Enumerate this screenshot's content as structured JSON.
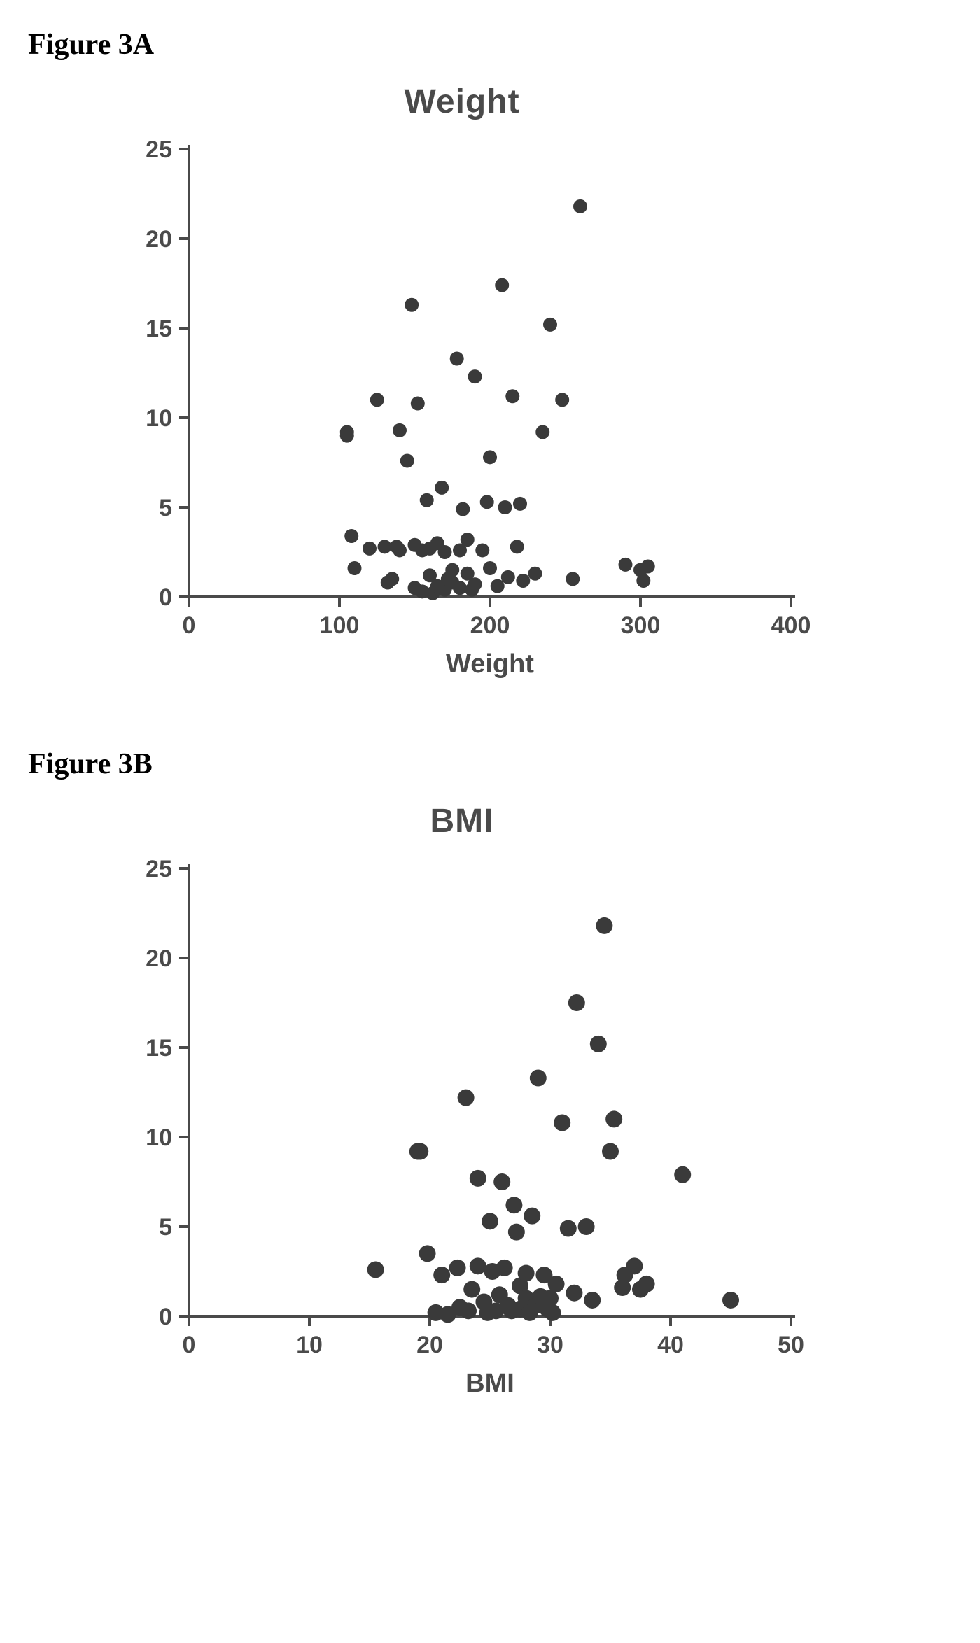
{
  "figures": [
    {
      "label": "Figure 3A",
      "chart": {
        "type": "scatter",
        "title": "Weight",
        "xlabel": "Weight",
        "ylabel": "",
        "xlim": [
          0,
          400
        ],
        "ylim": [
          0,
          25
        ],
        "xticks": [
          0,
          100,
          200,
          300,
          400
        ],
        "yticks": [
          0,
          5,
          10,
          15,
          20,
          25
        ],
        "marker_radius": 10,
        "marker_color": "#3a3a3a",
        "axis_color": "#4a4a4a",
        "axis_width": 4,
        "tick_length": 14,
        "tick_fontsize": 34,
        "label_fontsize": 38,
        "title_fontsize": 48,
        "background_color": "#ffffff",
        "points": [
          [
            105,
            9.2
          ],
          [
            105,
            9.0
          ],
          [
            108,
            3.4
          ],
          [
            110,
            1.6
          ],
          [
            120,
            2.7
          ],
          [
            125,
            11.0
          ],
          [
            130,
            2.8
          ],
          [
            132,
            0.8
          ],
          [
            135,
            1.0
          ],
          [
            138,
            2.8
          ],
          [
            140,
            9.3
          ],
          [
            140,
            2.6
          ],
          [
            145,
            7.6
          ],
          [
            148,
            16.3
          ],
          [
            150,
            2.9
          ],
          [
            150,
            0.5
          ],
          [
            152,
            10.8
          ],
          [
            155,
            0.3
          ],
          [
            155,
            2.6
          ],
          [
            158,
            5.4
          ],
          [
            160,
            2.7
          ],
          [
            160,
            1.2
          ],
          [
            162,
            0.2
          ],
          [
            165,
            3.0
          ],
          [
            165,
            0.6
          ],
          [
            168,
            6.1
          ],
          [
            170,
            2.5
          ],
          [
            170,
            0.4
          ],
          [
            172,
            1.0
          ],
          [
            175,
            1.5
          ],
          [
            175,
            0.8
          ],
          [
            178,
            13.3
          ],
          [
            180,
            2.6
          ],
          [
            180,
            0.5
          ],
          [
            182,
            4.9
          ],
          [
            185,
            1.3
          ],
          [
            185,
            3.2
          ],
          [
            188,
            0.4
          ],
          [
            190,
            12.3
          ],
          [
            190,
            0.7
          ],
          [
            195,
            2.6
          ],
          [
            198,
            5.3
          ],
          [
            200,
            7.8
          ],
          [
            200,
            1.6
          ],
          [
            205,
            0.6
          ],
          [
            208,
            17.4
          ],
          [
            210,
            5.0
          ],
          [
            212,
            1.1
          ],
          [
            215,
            11.2
          ],
          [
            218,
            2.8
          ],
          [
            220,
            5.2
          ],
          [
            222,
            0.9
          ],
          [
            230,
            1.3
          ],
          [
            235,
            9.2
          ],
          [
            240,
            15.2
          ],
          [
            248,
            11.0
          ],
          [
            255,
            1.0
          ],
          [
            260,
            21.8
          ],
          [
            290,
            1.8
          ],
          [
            300,
            1.5
          ],
          [
            302,
            0.9
          ],
          [
            305,
            1.7
          ]
        ]
      }
    },
    {
      "label": "Figure 3B",
      "chart": {
        "type": "scatter",
        "title": "BMI",
        "xlabel": "BMI",
        "ylabel": "",
        "xlim": [
          0,
          50
        ],
        "ylim": [
          0,
          25
        ],
        "xticks": [
          0,
          10,
          20,
          30,
          40,
          50
        ],
        "yticks": [
          0,
          5,
          10,
          15,
          20,
          25
        ],
        "marker_radius": 12,
        "marker_color": "#3a3a3a",
        "axis_color": "#4a4a4a",
        "axis_width": 4,
        "tick_length": 14,
        "tick_fontsize": 34,
        "label_fontsize": 38,
        "title_fontsize": 48,
        "background_color": "#ffffff",
        "points": [
          [
            15.5,
            2.6
          ],
          [
            19.0,
            9.2
          ],
          [
            19.2,
            9.2
          ],
          [
            19.8,
            3.5
          ],
          [
            20.5,
            0.2
          ],
          [
            21.0,
            2.3
          ],
          [
            21.5,
            0.1
          ],
          [
            22.3,
            2.7
          ],
          [
            22.5,
            0.5
          ],
          [
            23.0,
            12.2
          ],
          [
            23.2,
            0.3
          ],
          [
            23.5,
            1.5
          ],
          [
            24.0,
            7.7
          ],
          [
            24.0,
            2.8
          ],
          [
            24.5,
            0.8
          ],
          [
            24.8,
            0.2
          ],
          [
            25.0,
            5.3
          ],
          [
            25.2,
            2.5
          ],
          [
            25.5,
            0.3
          ],
          [
            25.8,
            1.2
          ],
          [
            26.0,
            7.5
          ],
          [
            26.2,
            2.7
          ],
          [
            26.5,
            0.6
          ],
          [
            26.8,
            0.3
          ],
          [
            27.0,
            6.2
          ],
          [
            27.2,
            4.7
          ],
          [
            27.5,
            1.7
          ],
          [
            27.5,
            0.4
          ],
          [
            28.0,
            2.4
          ],
          [
            28.0,
            1.0
          ],
          [
            28.3,
            0.2
          ],
          [
            28.5,
            5.6
          ],
          [
            28.8,
            0.6
          ],
          [
            29.0,
            13.3
          ],
          [
            29.2,
            1.1
          ],
          [
            29.5,
            2.3
          ],
          [
            29.8,
            0.4
          ],
          [
            30.0,
            1.0
          ],
          [
            30.2,
            0.2
          ],
          [
            30.5,
            1.8
          ],
          [
            31.0,
            10.8
          ],
          [
            31.5,
            4.9
          ],
          [
            32.0,
            1.3
          ],
          [
            32.2,
            17.5
          ],
          [
            33.0,
            5.0
          ],
          [
            33.5,
            0.9
          ],
          [
            34.0,
            15.2
          ],
          [
            34.5,
            21.8
          ],
          [
            35.0,
            9.2
          ],
          [
            35.3,
            11.0
          ],
          [
            36.0,
            1.6
          ],
          [
            36.2,
            2.3
          ],
          [
            37.0,
            2.8
          ],
          [
            37.5,
            1.5
          ],
          [
            38.0,
            1.8
          ],
          [
            41.0,
            7.9
          ],
          [
            45.0,
            0.9
          ]
        ]
      }
    }
  ]
}
